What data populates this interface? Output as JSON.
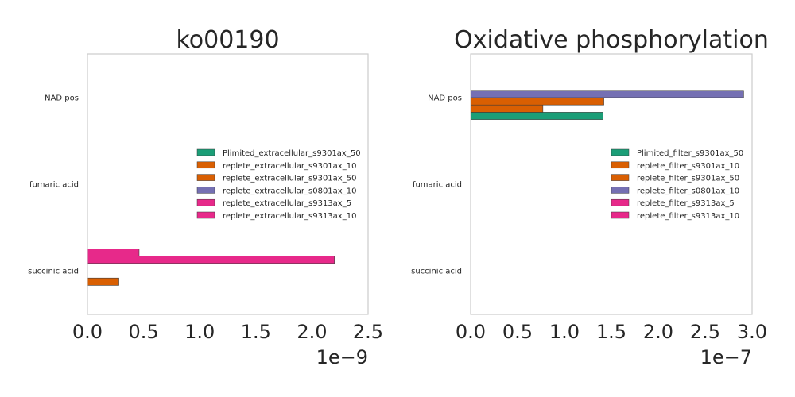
{
  "chart_data": [
    {
      "type": "bar",
      "orientation": "horizontal",
      "title": "ko00190",
      "xlabel": "",
      "ylabel": "",
      "xlim": [
        0,
        2.5e-09
      ],
      "x_ticks": [
        "0.0",
        "0.5",
        "1.0",
        "1.5",
        "2.0",
        "2.5"
      ],
      "x_tick_values": [
        0,
        5e-10,
        1e-09,
        1.5e-09,
        2e-09,
        2.5e-09
      ],
      "offset_text": "1e−9",
      "categories": [
        "NAD pos",
        "fumaric acid",
        "succinic acid"
      ],
      "grid": false,
      "legend_position": "center-right",
      "series": [
        {
          "name": "Plimited_extracellular_s9301ax_50",
          "color": "#1b9e77",
          "values": [
            0,
            0,
            0
          ]
        },
        {
          "name": "replete_extracellular_s9301ax_10",
          "color": "#d95f02",
          "values": [
            0,
            0,
            2.8e-10
          ]
        },
        {
          "name": "replete_extracellular_s9301ax_50",
          "color": "#d95f02",
          "values": [
            0,
            0,
            0
          ]
        },
        {
          "name": "replete_extracellular_s0801ax_10",
          "color": "#7570b3",
          "values": [
            0,
            0,
            0
          ]
        },
        {
          "name": "replete_extracellular_s9313ax_5",
          "color": "#e7298a",
          "values": [
            0,
            0,
            2.2e-09
          ]
        },
        {
          "name": "replete_extracellular_s9313ax_10",
          "color": "#e7298a",
          "values": [
            0,
            0,
            4.6e-10
          ]
        }
      ]
    },
    {
      "type": "bar",
      "orientation": "horizontal",
      "title": "Oxidative phosphorylation",
      "xlabel": "",
      "ylabel": "",
      "xlim": [
        0,
        3e-07
      ],
      "x_ticks": [
        "0.0",
        "0.5",
        "1.0",
        "1.5",
        "2.0",
        "2.5",
        "3.0"
      ],
      "x_tick_values": [
        0,
        5e-08,
        1e-07,
        1.5e-07,
        2e-07,
        2.5e-07,
        3e-07
      ],
      "offset_text": "1e−7",
      "categories": [
        "NAD pos",
        "fumaric acid",
        "succinic acid"
      ],
      "grid": false,
      "legend_position": "center-right",
      "series": [
        {
          "name": "Plimited_filter_s9301ax_50",
          "color": "#1b9e77",
          "values": [
            1.41e-07,
            0,
            0
          ]
        },
        {
          "name": "replete_filter_s9301ax_10",
          "color": "#d95f02",
          "values": [
            7.7e-08,
            0,
            0
          ]
        },
        {
          "name": "replete_filter_s9301ax_50",
          "color": "#d95f02",
          "values": [
            1.42e-07,
            0,
            0
          ]
        },
        {
          "name": "replete_filter_s0801ax_10",
          "color": "#7570b3",
          "values": [
            2.91e-07,
            0,
            0
          ]
        },
        {
          "name": "replete_filter_s9313ax_5",
          "color": "#e7298a",
          "values": [
            0,
            0,
            0
          ]
        },
        {
          "name": "replete_filter_s9313ax_10",
          "color": "#e7298a",
          "values": [
            0,
            0,
            0
          ]
        }
      ]
    }
  ]
}
